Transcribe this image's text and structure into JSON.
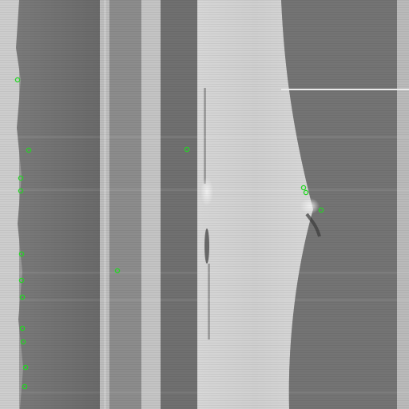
{
  "image": {
    "kind": "grayscale cross-section micrograph with annotated markers",
    "marker_color": "#22d622",
    "palette": {
      "left_edge": "#cfcfcf",
      "dark_band": "#6f6f6f",
      "mid_band": "#9c9c9c",
      "light_band": "#c2c2c2",
      "central_gap": "#d2d2d2",
      "right_band": "#737373",
      "far_right": "#bdbdbd"
    }
  },
  "markers": {
    "count": 17,
    "icon": "circle-marker-icon"
  }
}
